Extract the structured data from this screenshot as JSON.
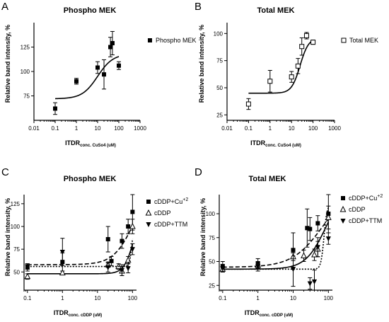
{
  "chart_data": [
    {
      "panel": "A",
      "type": "scatter",
      "title": "Phospho MEK",
      "xlabel": "ITDR",
      "xlabel_sub": "conc. CuSo4 (uM)",
      "ylabel": "Relative band intensity, %",
      "xscale": "log",
      "xlim": [
        0.01,
        1000
      ],
      "ylim": [
        50,
        150
      ],
      "xticks": [
        "0.01",
        "0.1",
        "1",
        "10",
        "100",
        "1000"
      ],
      "xtick_values": [
        0.01,
        0.1,
        1,
        10,
        100,
        1000
      ],
      "yticks": [
        75,
        100,
        125
      ],
      "legend_position": "right",
      "series": [
        {
          "name": "Phospho MEK",
          "marker": "filled-square",
          "line": "solid",
          "x": [
            0.1,
            1,
            10,
            20,
            40,
            50,
            100
          ],
          "y": [
            62,
            90,
            104,
            97,
            125,
            129,
            106
          ],
          "err": [
            6,
            3,
            6,
            15,
            10,
            12,
            4
          ],
          "fit": {
            "bottom": 72,
            "top": 118,
            "ec50": 10,
            "hill": 1.2
          }
        }
      ]
    },
    {
      "panel": "B",
      "type": "scatter",
      "title": "Total MEK",
      "xlabel": "ITDR",
      "xlabel_sub": "conc. CuSo4 (uM)",
      "ylabel": "Relative band intensity, %",
      "xscale": "log",
      "xlim": [
        0.01,
        1000
      ],
      "ylim": [
        20,
        110
      ],
      "xticks": [
        "0.01",
        "0.1",
        "1",
        "10",
        "100",
        "1000"
      ],
      "xtick_values": [
        0.01,
        0.1,
        1,
        10,
        100,
        1000
      ],
      "yticks": [
        25,
        50,
        75,
        100
      ],
      "legend_position": "right",
      "series": [
        {
          "name": "Total MEK",
          "marker": "open-square",
          "line": "solid",
          "x": [
            0.1,
            1,
            10,
            20,
            30,
            50,
            100
          ],
          "y": [
            35,
            56,
            60,
            70,
            88,
            98,
            92
          ],
          "err": [
            5,
            10,
            5,
            7,
            8,
            3,
            2
          ],
          "fit": {
            "bottom": 45,
            "top": 96,
            "ec50": 25,
            "hill": 2.2
          }
        }
      ]
    },
    {
      "panel": "C",
      "type": "scatter",
      "title": "Phospho MEK",
      "xlabel": "ITDR",
      "xlabel_sub": "conc. cDDP (uM)",
      "ylabel": "Relative band intensity, %",
      "xscale": "log",
      "xlim": [
        0.08,
        130
      ],
      "ylim": [
        30,
        135
      ],
      "xticks": [
        "0.1",
        "1",
        "10",
        "100"
      ],
      "xtick_values": [
        0.1,
        1,
        10,
        100
      ],
      "yticks": [
        50,
        75,
        100,
        125
      ],
      "legend_position": "right",
      "series": [
        {
          "name": "cDDP+Cu+2",
          "marker": "filled-square",
          "line": "dashed",
          "x": [
            0.1,
            1,
            20,
            25,
            50,
            75,
            100
          ],
          "y": [
            55,
            61,
            86,
            62,
            84,
            100,
            116
          ],
          "err": [
            4,
            10,
            14,
            5,
            8,
            8,
            20
          ],
          "fit": {
            "bottom": 58,
            "top": 150,
            "ec50": 110,
            "hill": 1.5
          }
        },
        {
          "name": "cDDP",
          "marker": "open-triangle",
          "line": "solid",
          "x": [
            0.1,
            1,
            20,
            40,
            50,
            75,
            100
          ],
          "y": [
            45,
            49,
            58,
            56,
            51,
            63,
            100
          ],
          "err": [
            3,
            2,
            3,
            3,
            5,
            4,
            8
          ],
          "fit": {
            "bottom": 48,
            "top": 130,
            "ec50": 115,
            "hill": 3
          }
        },
        {
          "name": "cDDP+TTM",
          "marker": "filled-triangle-down",
          "line": "dotted",
          "x": [
            0.1,
            1,
            20,
            50,
            75,
            100
          ],
          "y": [
            56,
            72,
            55,
            52,
            54,
            75
          ],
          "err": [
            3,
            15,
            5,
            6,
            5,
            6
          ],
          "fit": {
            "bottom": 56,
            "top": 110,
            "ec50": 98,
            "hill": 12
          }
        }
      ]
    },
    {
      "panel": "D",
      "type": "scatter",
      "title": "Total MEK",
      "xlabel": "ITDR",
      "xlabel_sub": "conc. cDDP (uM)",
      "ylabel": "Relative band intensity, %",
      "xscale": "log",
      "xlim": [
        0.08,
        130
      ],
      "ylim": [
        20,
        120
      ],
      "xticks": [
        "0.1",
        "1",
        "10",
        "100"
      ],
      "xtick_values": [
        0.1,
        1,
        10,
        100
      ],
      "yticks": [
        25,
        50,
        75,
        100
      ],
      "legend_position": "right",
      "series": [
        {
          "name": "cDDP+Cu+2",
          "marker": "filled-square",
          "line": "dashed",
          "x": [
            0.1,
            1,
            10,
            25,
            30,
            50,
            100
          ],
          "y": [
            45,
            48,
            62,
            85,
            84,
            90,
            100
          ],
          "err": [
            5,
            5,
            18,
            20,
            12,
            8,
            20
          ],
          "fit": {
            "bottom": 44,
            "top": 130,
            "ec50": 70,
            "hill": 1
          }
        },
        {
          "name": "cDDP",
          "marker": "open-triangle",
          "line": "solid",
          "x": [
            0.1,
            1,
            10,
            20,
            40,
            50,
            100
          ],
          "y": [
            42,
            46,
            55,
            56,
            57,
            63,
            96
          ],
          "err": [
            3,
            3,
            4,
            6,
            6,
            8,
            12
          ],
          "fit": {
            "bottom": 42,
            "top": 130,
            "ec50": 85,
            "hill": 1.5
          }
        },
        {
          "name": "cDDP+TTM",
          "marker": "filled-triangle-down",
          "line": "dotted",
          "x": [
            0.1,
            1,
            10,
            30,
            40,
            50,
            100
          ],
          "y": [
            43,
            45,
            42,
            27,
            29,
            65,
            74
          ],
          "err": [
            4,
            5,
            18,
            6,
            12,
            10,
            6
          ],
          "fit": {
            "bottom": 42,
            "top": 110,
            "ec50": 75,
            "hill": 10
          }
        }
      ]
    }
  ]
}
